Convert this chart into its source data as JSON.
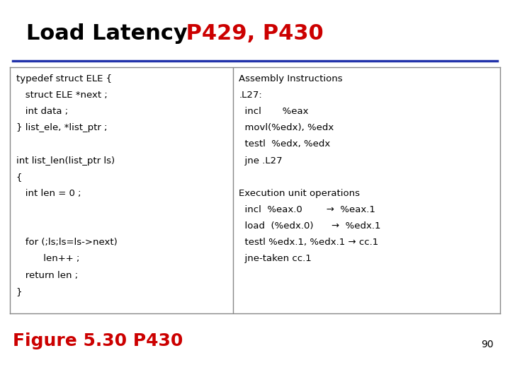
{
  "title_black": "Load Latency",
  "title_red": " P429, P430",
  "title_fontsize": 22,
  "divider_color": "#2233aa",
  "bg_color": "#ffffff",
  "left_code": [
    "typedef struct ELE {",
    "   struct ELE *next ;",
    "   int data ;",
    "} list_ele, *list_ptr ;",
    "",
    "int list_len(list_ptr ls)",
    "{",
    "   int len = 0 ;",
    "",
    "",
    "   for (;ls;ls=ls->next)",
    "         len++ ;",
    "   return len ;",
    "}"
  ],
  "right_lines": [
    {
      "text": "Assembly Instructions",
      "bold": false
    },
    {
      "text": ".L27:",
      "bold": false
    },
    {
      "text": "  incl       %eax",
      "bold": false
    },
    {
      "text": "  movl(%edx), %edx",
      "bold": false
    },
    {
      "text": "  testl  %edx, %edx",
      "bold": false
    },
    {
      "text": "  jne .L27",
      "bold": false
    },
    {
      "text": "",
      "bold": false
    },
    {
      "text": "Execution unit operations",
      "bold": false
    },
    {
      "text": "  incl  %eax.0        →  %eax.1",
      "bold": false
    },
    {
      "text": "  load  (%edx.0)      →  %edx.1",
      "bold": false
    },
    {
      "text": "  testl %edx.1, %edx.1 → cc.1",
      "bold": false
    },
    {
      "text": "  jne-taken cc.1",
      "bold": false
    }
  ],
  "figure_label": "Figure 5.30 P430",
  "figure_label_color": "#cc0000",
  "figure_label_fontsize": 18,
  "page_number": "90",
  "code_fontsize": 9.5
}
